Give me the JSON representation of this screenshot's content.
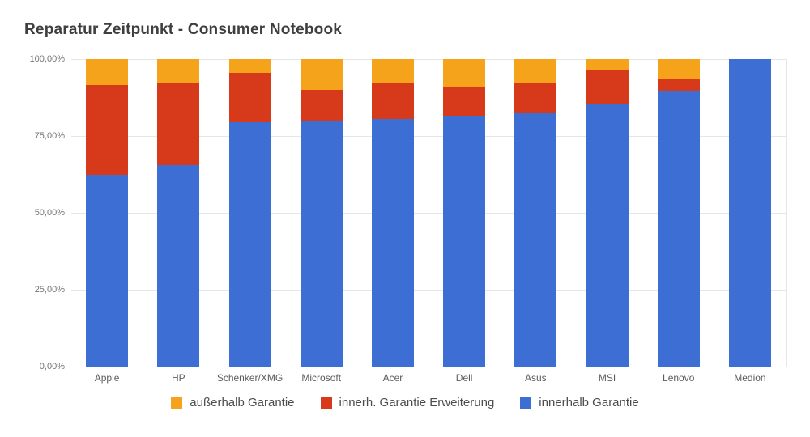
{
  "title": "Reparatur Zeitpunkt - Consumer Notebook",
  "chart_data": {
    "type": "bar",
    "variant": "stacked-percent-column",
    "title": "Reparatur Zeitpunkt - Consumer Notebook",
    "xlabel": "",
    "ylabel": "",
    "ylim": [
      0,
      100
    ],
    "grid": true,
    "legend_position": "bottom",
    "y_ticks": [
      "100,00%",
      "75,00%",
      "50,00%",
      "25,00%",
      "0,00%"
    ],
    "categories": [
      "Apple",
      "HP",
      "Schenker/XMG",
      "Microsoft",
      "Acer",
      "Dell",
      "Asus",
      "MSI",
      "Lenovo",
      "Medion"
    ],
    "series": [
      {
        "name": "innerhalb Garantie",
        "color": "#3D6ED4",
        "values": [
          62.5,
          65.5,
          79.5,
          80,
          80.5,
          81.5,
          82.5,
          85.5,
          89.5,
          100
        ]
      },
      {
        "name": "innerh. Garantie Erweiterung",
        "color": "#D7391B",
        "values": [
          29,
          27,
          16,
          10,
          11.5,
          9.5,
          9.5,
          11,
          4,
          0
        ]
      },
      {
        "name": "außerhalb Garantie",
        "color": "#F5A31A",
        "values": [
          8.5,
          7.5,
          4.5,
          10,
          8,
          9,
          8,
          3.5,
          6.5,
          0
        ]
      }
    ]
  },
  "colors": {
    "gridline": "#e6e6e6",
    "axis_baseline": "#9e9e9e",
    "tick_text": "#757575",
    "category_text": "#5c5c5c",
    "legend_text": "#4c4c4c",
    "title_text": "#3f3f3f",
    "background": "#ffffff"
  }
}
